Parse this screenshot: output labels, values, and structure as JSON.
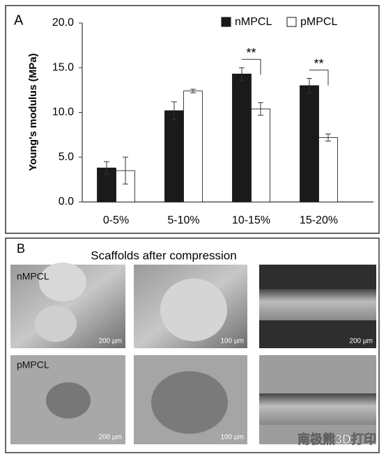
{
  "chart_data": {
    "type": "bar",
    "panel_label": "A",
    "ylabel": "Young's modulus (MPa)",
    "categories": [
      "0-5%",
      "5-10%",
      "10-15%",
      "15-20%"
    ],
    "series": [
      {
        "name": "nMPCL",
        "color": "#1a1a1a",
        "values": [
          3.8,
          10.2,
          14.3,
          13.0
        ],
        "errors": [
          0.7,
          1.0,
          0.7,
          0.8
        ]
      },
      {
        "name": "pMPCL",
        "color": "#ffffff",
        "values": [
          3.5,
          12.4,
          10.4,
          7.2
        ],
        "errors": [
          1.5,
          0.2,
          0.7,
          0.4
        ]
      }
    ],
    "ylim": [
      0,
      20
    ],
    "yticks": [
      {
        "value": 0,
        "label": "0.0"
      },
      {
        "value": 5,
        "label": "5.0"
      },
      {
        "value": 10,
        "label": "10.0"
      },
      {
        "value": 15,
        "label": "15.0"
      },
      {
        "value": 20,
        "label": "20.0"
      }
    ],
    "grid": false,
    "legend": "top-right",
    "annotations": [
      "**",
      "**"
    ]
  },
  "panel_b": {
    "label": "B",
    "title": "Scaffolds after compression",
    "row_labels": [
      "nMPCL",
      "pMPCL"
    ],
    "scale_bars": [
      "200 µm",
      "100 µm",
      "200 µm",
      "200 µm",
      "100 µm"
    ]
  },
  "watermark": "南极熊3D打印"
}
